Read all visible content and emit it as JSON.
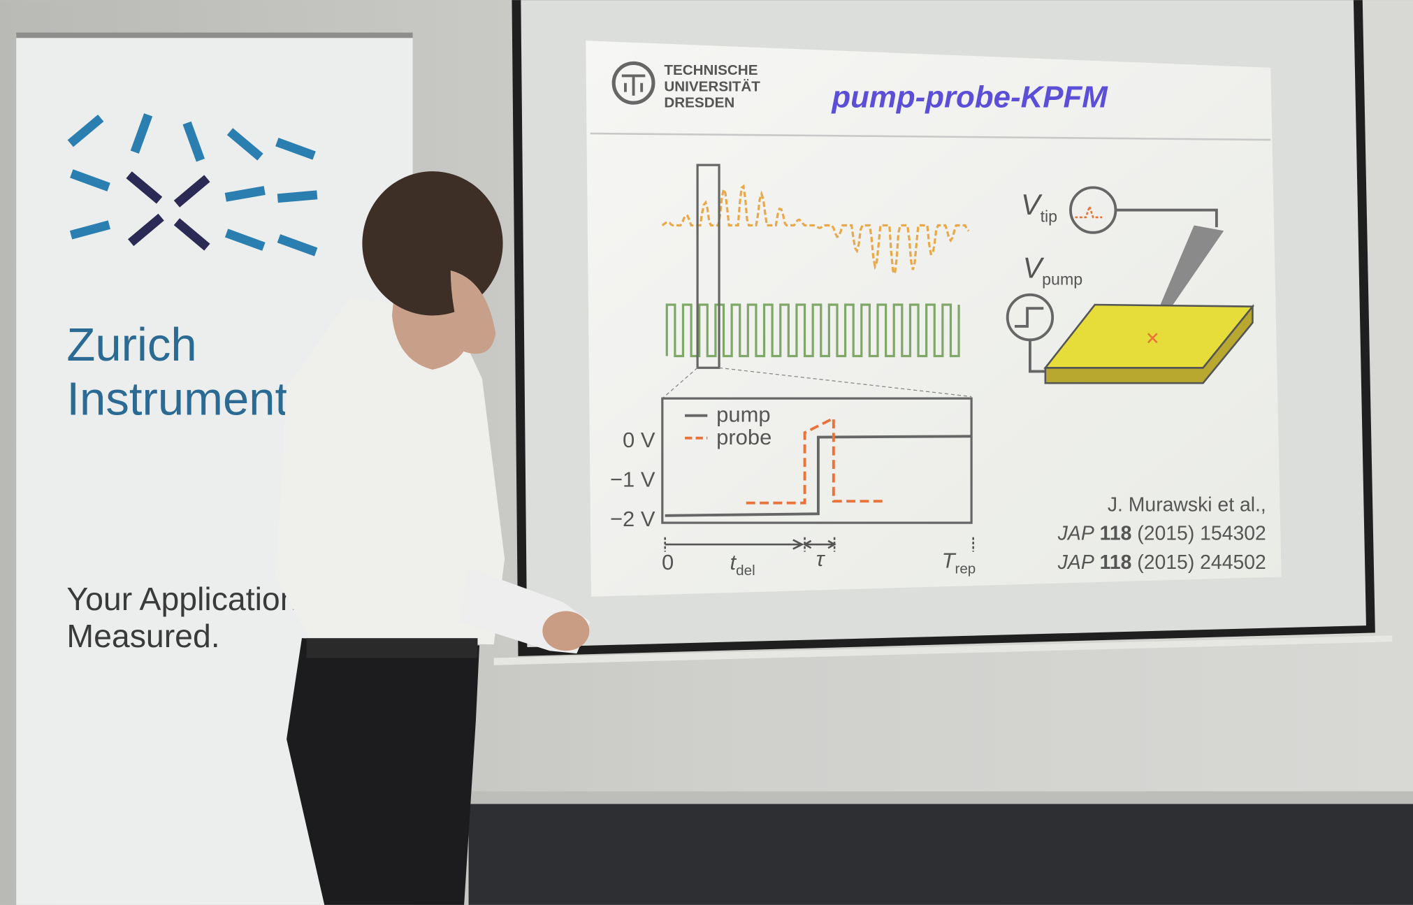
{
  "banner": {
    "brand_line1": "Zurich",
    "brand_line2": "Instruments",
    "tagline_line1": "Your Application",
    "tagline_line2": "Measured."
  },
  "slide": {
    "institution": [
      "TECHNISCHE",
      "UNIVERSITÄT",
      "DRESDEN"
    ],
    "title": "pump-probe-KPFM",
    "signals": {
      "tip": {
        "base": "V",
        "sub": "tip"
      },
      "pump": {
        "base": "V",
        "sub": "pump"
      }
    },
    "plot": {
      "legend": [
        "pump",
        "probe"
      ],
      "y_labels": [
        "0 V",
        "−1 V",
        "−2 V"
      ],
      "x_labels": [
        {
          "base": "0"
        },
        {
          "base": "t",
          "sub": "del"
        },
        {
          "base": "τ"
        },
        {
          "base": "T",
          "sub": "rep"
        }
      ]
    },
    "citation": [
      {
        "text": "J. Murawski et al.,"
      },
      {
        "journal": "JAP",
        "volume": "118",
        "rest": "(2015) 154302"
      },
      {
        "journal": "JAP",
        "volume": "118",
        "rest": "(2015) 244502"
      }
    ]
  }
}
